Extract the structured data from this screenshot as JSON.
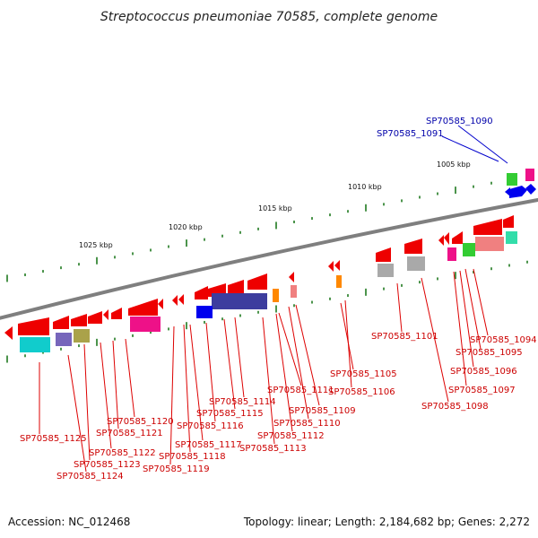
{
  "title": "Streptococcus pneumoniae 70585, complete genome",
  "scale_labels": [
    "1005 kbp",
    "1010 kbp",
    "1015 kbp",
    "1020 kbp",
    "1025 kbp"
  ],
  "genes_above": [
    "SP70585_1090",
    "SP70585_1091"
  ],
  "genes_below": [
    "SP70585_1094",
    "SP70585_1095",
    "SP70585_1096",
    "SP70585_1097",
    "SP70585_1098",
    "SP70585_1101",
    "SP70585_1105",
    "SP70585_1106",
    "SP70585_1109",
    "SP70585_1110",
    "SP70585_1111",
    "SP70585_1112",
    "SP70585_1113",
    "SP70585_1114",
    "SP70585_1115",
    "SP70585_1116",
    "SP70585_1117",
    "SP70585_1118",
    "SP70585_1119",
    "SP70585_1120",
    "SP70585_1121",
    "SP70585_1122",
    "SP70585_1123",
    "SP70585_1124",
    "SP70585_1125"
  ],
  "footer": {
    "accession": "Accession: NC_012468",
    "summary": "Topology: linear; Length: 2,184,682 bp; Genes: 2,272"
  },
  "colors": {
    "gene_forward": "#ee0000",
    "gene_reverse": "#0000ee",
    "label_below": "#cc0000",
    "label_above": "#0000aa",
    "backbone": "#8a8a8a",
    "tick": "#1f7a1f"
  }
}
